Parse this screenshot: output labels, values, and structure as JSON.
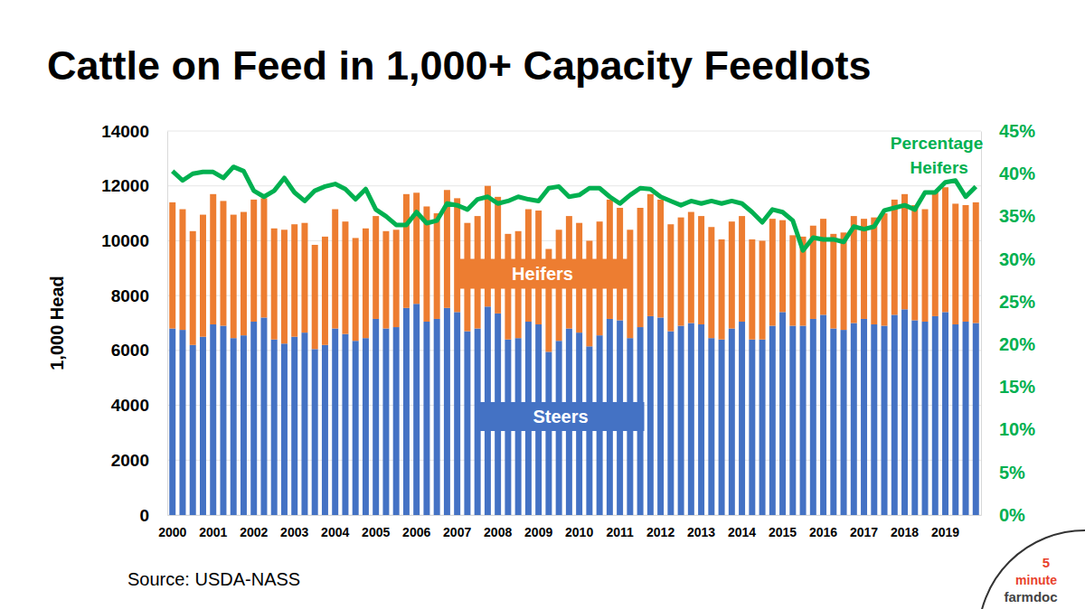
{
  "chart_data": {
    "type": "bar",
    "title": "Cattle on Feed in 1,000+ Capacity Feedlots",
    "ylabel": "1,000 Head",
    "stacked": true,
    "grid": true,
    "categories": [
      "2000",
      null,
      null,
      null,
      "2001",
      null,
      null,
      null,
      "2002",
      null,
      null,
      null,
      "2003",
      null,
      null,
      null,
      "2004",
      null,
      null,
      null,
      "2005",
      null,
      null,
      null,
      "2006",
      null,
      null,
      null,
      "2007",
      null,
      null,
      null,
      "2008",
      null,
      null,
      null,
      "2009",
      null,
      null,
      null,
      "2010",
      null,
      null,
      null,
      "2011",
      null,
      null,
      null,
      "2012",
      null,
      null,
      null,
      "2013",
      null,
      null,
      null,
      "2014",
      null,
      null,
      null,
      "2015",
      null,
      null,
      null,
      "2016",
      null,
      null,
      null,
      "2017",
      null,
      null,
      null,
      "2018",
      null,
      null,
      null,
      "2019",
      null,
      null,
      null
    ],
    "series": [
      {
        "name": "Steers",
        "color": "#4472c4",
        "values": [
          6800,
          6750,
          6200,
          6500,
          6950,
          6900,
          6450,
          6550,
          7050,
          7200,
          6400,
          6250,
          6500,
          6650,
          6050,
          6200,
          6800,
          6600,
          6350,
          6450,
          7150,
          6800,
          6850,
          7550,
          7700,
          7050,
          7150,
          7550,
          7400,
          6700,
          6800,
          7600,
          7350,
          6400,
          6450,
          7050,
          6950,
          5950,
          6350,
          6800,
          6650,
          6150,
          6550,
          7150,
          7100,
          6450,
          6850,
          7250,
          7200,
          6700,
          6900,
          7000,
          6950,
          6450,
          6400,
          6800,
          7050,
          6400,
          6400,
          6900,
          7400,
          6900,
          6900,
          7150,
          7300,
          6800,
          6750,
          7000,
          7150,
          6950,
          6900,
          7300,
          7500,
          7100,
          7050,
          7250,
          7400,
          6950,
          7050,
          7000
        ]
      },
      {
        "name": "Heifers",
        "color": "#ed7d31",
        "values": [
          4600,
          4400,
          4150,
          4450,
          4750,
          4550,
          4500,
          4500,
          4450,
          4350,
          4050,
          4150,
          4100,
          4000,
          3800,
          3950,
          4350,
          4100,
          3750,
          4000,
          3750,
          3550,
          3550,
          4150,
          4050,
          4200,
          3850,
          4300,
          4150,
          3950,
          4100,
          4400,
          4250,
          3850,
          3900,
          4100,
          4150,
          3750,
          4050,
          4100,
          4000,
          3850,
          4150,
          4350,
          4100,
          3950,
          4350,
          4450,
          4300,
          3900,
          3950,
          4050,
          3950,
          4050,
          3650,
          3900,
          3850,
          3650,
          3600,
          3900,
          3350,
          3300,
          3250,
          3400,
          3500,
          3450,
          3550,
          3900,
          3650,
          3900,
          4100,
          4200,
          4200,
          4200,
          4100,
          4550,
          4550,
          4400,
          4250,
          4400
        ]
      },
      {
        "name": "Percentage Heifers",
        "type": "line",
        "axis": "y2",
        "color": "#00b050",
        "values": [
          40.3,
          39.2,
          40.0,
          40.2,
          40.2,
          39.5,
          40.8,
          40.3,
          38.0,
          37.3,
          38.0,
          39.5,
          37.8,
          36.8,
          38.0,
          38.5,
          38.8,
          38.2,
          37.0,
          38.2,
          35.8,
          35.0,
          34.0,
          34.0,
          35.5,
          34.2,
          34.5,
          36.5,
          36.3,
          35.8,
          37.0,
          37.3,
          36.5,
          36.8,
          37.3,
          37.0,
          36.8,
          38.3,
          38.5,
          37.3,
          37.5,
          38.3,
          38.3,
          37.3,
          36.5,
          37.5,
          38.3,
          38.2,
          37.3,
          36.8,
          36.3,
          36.8,
          36.5,
          36.8,
          36.5,
          36.8,
          36.5,
          35.5,
          34.3,
          35.8,
          35.5,
          34.5,
          31.0,
          32.5,
          32.3,
          32.3,
          32.0,
          33.8,
          33.5,
          33.8,
          35.7,
          36.0,
          36.3,
          35.8,
          37.8,
          37.8,
          39.0,
          39.2,
          37.3,
          38.5
        ]
      }
    ],
    "ylim": [
      0,
      14000
    ],
    "yticks": [
      0,
      2000,
      4000,
      6000,
      8000,
      10000,
      12000,
      14000
    ],
    "y2lim": [
      0,
      45
    ],
    "y2ticks": [
      {
        "value": 0,
        "label": "0%"
      },
      {
        "value": 5,
        "label": "5%"
      },
      {
        "value": 10,
        "label": "10%"
      },
      {
        "value": 15,
        "label": "15%"
      },
      {
        "value": 20,
        "label": "20%"
      },
      {
        "value": 25,
        "label": "25%"
      },
      {
        "value": 30,
        "label": "30%"
      },
      {
        "value": 35,
        "label": "35%"
      },
      {
        "value": 40,
        "label": "40%"
      },
      {
        "value": 45,
        "label": "45%"
      }
    ],
    "annotations": [
      "Source: USDA-NASS",
      "5",
      "minute",
      "farmdoc"
    ]
  }
}
